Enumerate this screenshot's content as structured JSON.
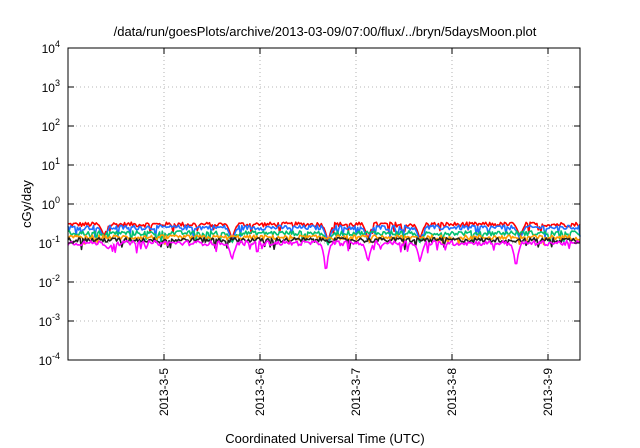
{
  "chart_data": {
    "type": "line",
    "title": "/data/run/goesPlots/archive/2013-03-09/07:00/flux/../bryn/5daysMoon.plot",
    "xlabel": "Coordinated Universal Time (UTC)",
    "ylabel": "cGy/day",
    "yscale": "log",
    "ylim": [
      0.0001,
      10000
    ],
    "y_ticks": [
      {
        "base": "10",
        "exp": "-4"
      },
      {
        "base": "10",
        "exp": "-3"
      },
      {
        "base": "10",
        "exp": "-2"
      },
      {
        "base": "10",
        "exp": "-1"
      },
      {
        "base": "10",
        "exp": "0"
      },
      {
        "base": "10",
        "exp": "1"
      },
      {
        "base": "10",
        "exp": "2"
      },
      {
        "base": "10",
        "exp": "3"
      },
      {
        "base": "10",
        "exp": "4"
      }
    ],
    "x_range_days": [
      "2013-03-04 00:00",
      "2013-03-09 08:00"
    ],
    "x_ticks": [
      "2013-3-5",
      "2013-3-6",
      "2013-3-7",
      "2013-3-8",
      "2013-3-9"
    ],
    "grid": true,
    "series": [
      {
        "color": "#ff0000",
        "base": 0.3,
        "dips": [
          {
            "x": "2013-03-04 09:00",
            "y": 0.15
          },
          {
            "x": "2013-03-05 17:00",
            "y": 0.12
          },
          {
            "x": "2013-03-06 17:00",
            "y": 0.1
          },
          {
            "x": "2013-03-07 03:00",
            "y": 0.12
          },
          {
            "x": "2013-03-07 16:00",
            "y": 0.12
          },
          {
            "x": "2013-03-08 17:00",
            "y": 0.14
          }
        ]
      },
      {
        "color": "#1e70ff",
        "base": 0.25,
        "dips": [
          {
            "x": "2013-03-04 09:00",
            "y": 0.12
          },
          {
            "x": "2013-03-05 17:00",
            "y": 0.1
          },
          {
            "x": "2013-03-06 17:00",
            "y": 0.09
          },
          {
            "x": "2013-03-07 03:00",
            "y": 0.1
          },
          {
            "x": "2013-03-07 16:00",
            "y": 0.1
          },
          {
            "x": "2013-03-08 17:00",
            "y": 0.12
          }
        ]
      },
      {
        "color": "#00c070",
        "base": 0.18,
        "dips": [
          {
            "x": "2013-03-05 17:00",
            "y": 0.1
          },
          {
            "x": "2013-03-06 17:00",
            "y": 0.09
          },
          {
            "x": "2013-03-07 16:00",
            "y": 0.1
          }
        ]
      },
      {
        "color": "#ff9900",
        "base": 0.14,
        "dips": []
      },
      {
        "color": "#202020",
        "base": 0.12,
        "dips": []
      },
      {
        "color": "#ff00ff",
        "base": 0.1,
        "dips": [
          {
            "x": "2013-03-04 10:00",
            "y": 0.07
          },
          {
            "x": "2013-03-05 17:00",
            "y": 0.035
          },
          {
            "x": "2013-03-06 16:30",
            "y": 0.012
          },
          {
            "x": "2013-03-07 03:00",
            "y": 0.03
          },
          {
            "x": "2013-03-07 16:00",
            "y": 0.03
          },
          {
            "x": "2013-03-08 16:00",
            "y": 0.02
          }
        ]
      }
    ]
  }
}
